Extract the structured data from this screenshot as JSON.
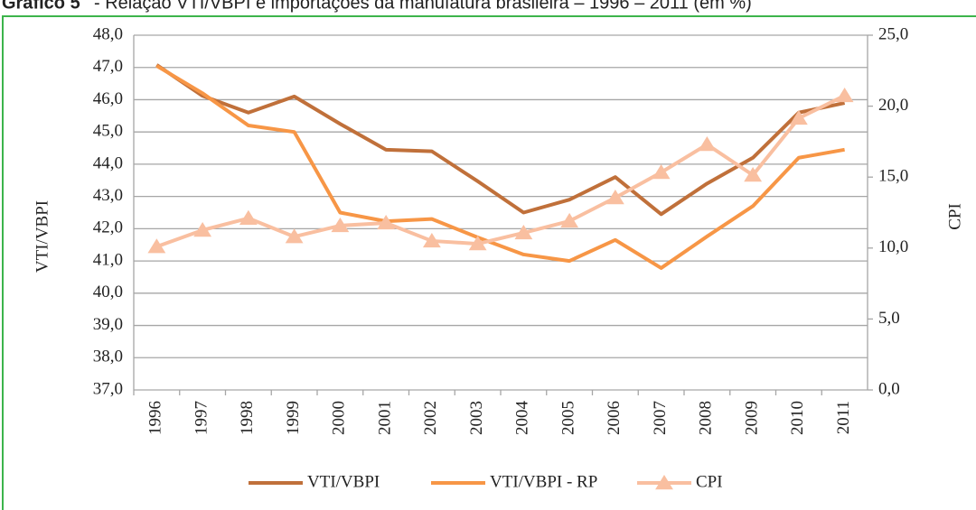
{
  "chart_data": {
    "type": "line",
    "title_prefix": "Gráfico 5",
    "title": "- Relação VTI/VBPI e importações da manufatura brasileira – 1996 – 2011 (em %)",
    "y_label": "VTI/VBPI",
    "y2_label": "CPI",
    "categories": [
      "1996",
      "1997",
      "1998",
      "1999",
      "2000",
      "2001",
      "2002",
      "2003",
      "2004",
      "2005",
      "2006",
      "2007",
      "2008",
      "2009",
      "2010",
      "2011"
    ],
    "series": [
      {
        "name": "VTI/VBPI",
        "color": "#c0703a",
        "values": [
          47.08,
          46.12,
          45.6,
          46.1,
          45.25,
          44.45,
          44.4,
          43.47,
          42.5,
          42.9,
          43.6,
          42.45,
          43.4,
          44.2,
          45.6,
          45.9
        ]
      },
      {
        "name": "VTI/VBPI - RP",
        "color": "#f79646",
        "values": [
          47.05,
          46.2,
          45.2,
          45.0,
          42.5,
          42.23,
          42.3,
          41.73,
          41.2,
          41.0,
          41.65,
          40.78,
          41.76,
          42.7,
          44.2,
          44.45
        ]
      },
      {
        "name": "CPI",
        "color": "#f9bfa0",
        "axis": "y2",
        "marker": "triangle",
        "values": [
          10.1,
          11.26,
          12.1,
          10.8,
          11.58,
          11.77,
          10.5,
          10.3,
          11.07,
          11.9,
          13.55,
          15.33,
          17.3,
          15.14,
          19.15,
          20.74
        ]
      }
    ],
    "ylim": [
      37,
      48
    ],
    "yticks": [
      {
        "value": 37,
        "label": "37,0"
      },
      {
        "value": 38,
        "label": "38,0"
      },
      {
        "value": 39,
        "label": "39,0"
      },
      {
        "value": 40,
        "label": "40,0"
      },
      {
        "value": 41,
        "label": "41,0"
      },
      {
        "value": 42,
        "label": "42,0"
      },
      {
        "value": 43,
        "label": "43,0"
      },
      {
        "value": 44,
        "label": "44,0"
      },
      {
        "value": 45,
        "label": "45,0"
      },
      {
        "value": 46,
        "label": "46,0"
      },
      {
        "value": 47,
        "label": "47,0"
      },
      {
        "value": 48,
        "label": "48,0"
      }
    ],
    "y2lim": [
      0,
      25
    ],
    "y2ticks": [
      {
        "value": 0,
        "label": "0,0"
      },
      {
        "value": 5,
        "label": "5,0"
      },
      {
        "value": 10,
        "label": "10,0"
      },
      {
        "value": 15,
        "label": "15,0"
      },
      {
        "value": 20,
        "label": "20,0"
      },
      {
        "value": 25,
        "label": "25,0"
      }
    ],
    "grid": true,
    "legend": "bottom"
  }
}
